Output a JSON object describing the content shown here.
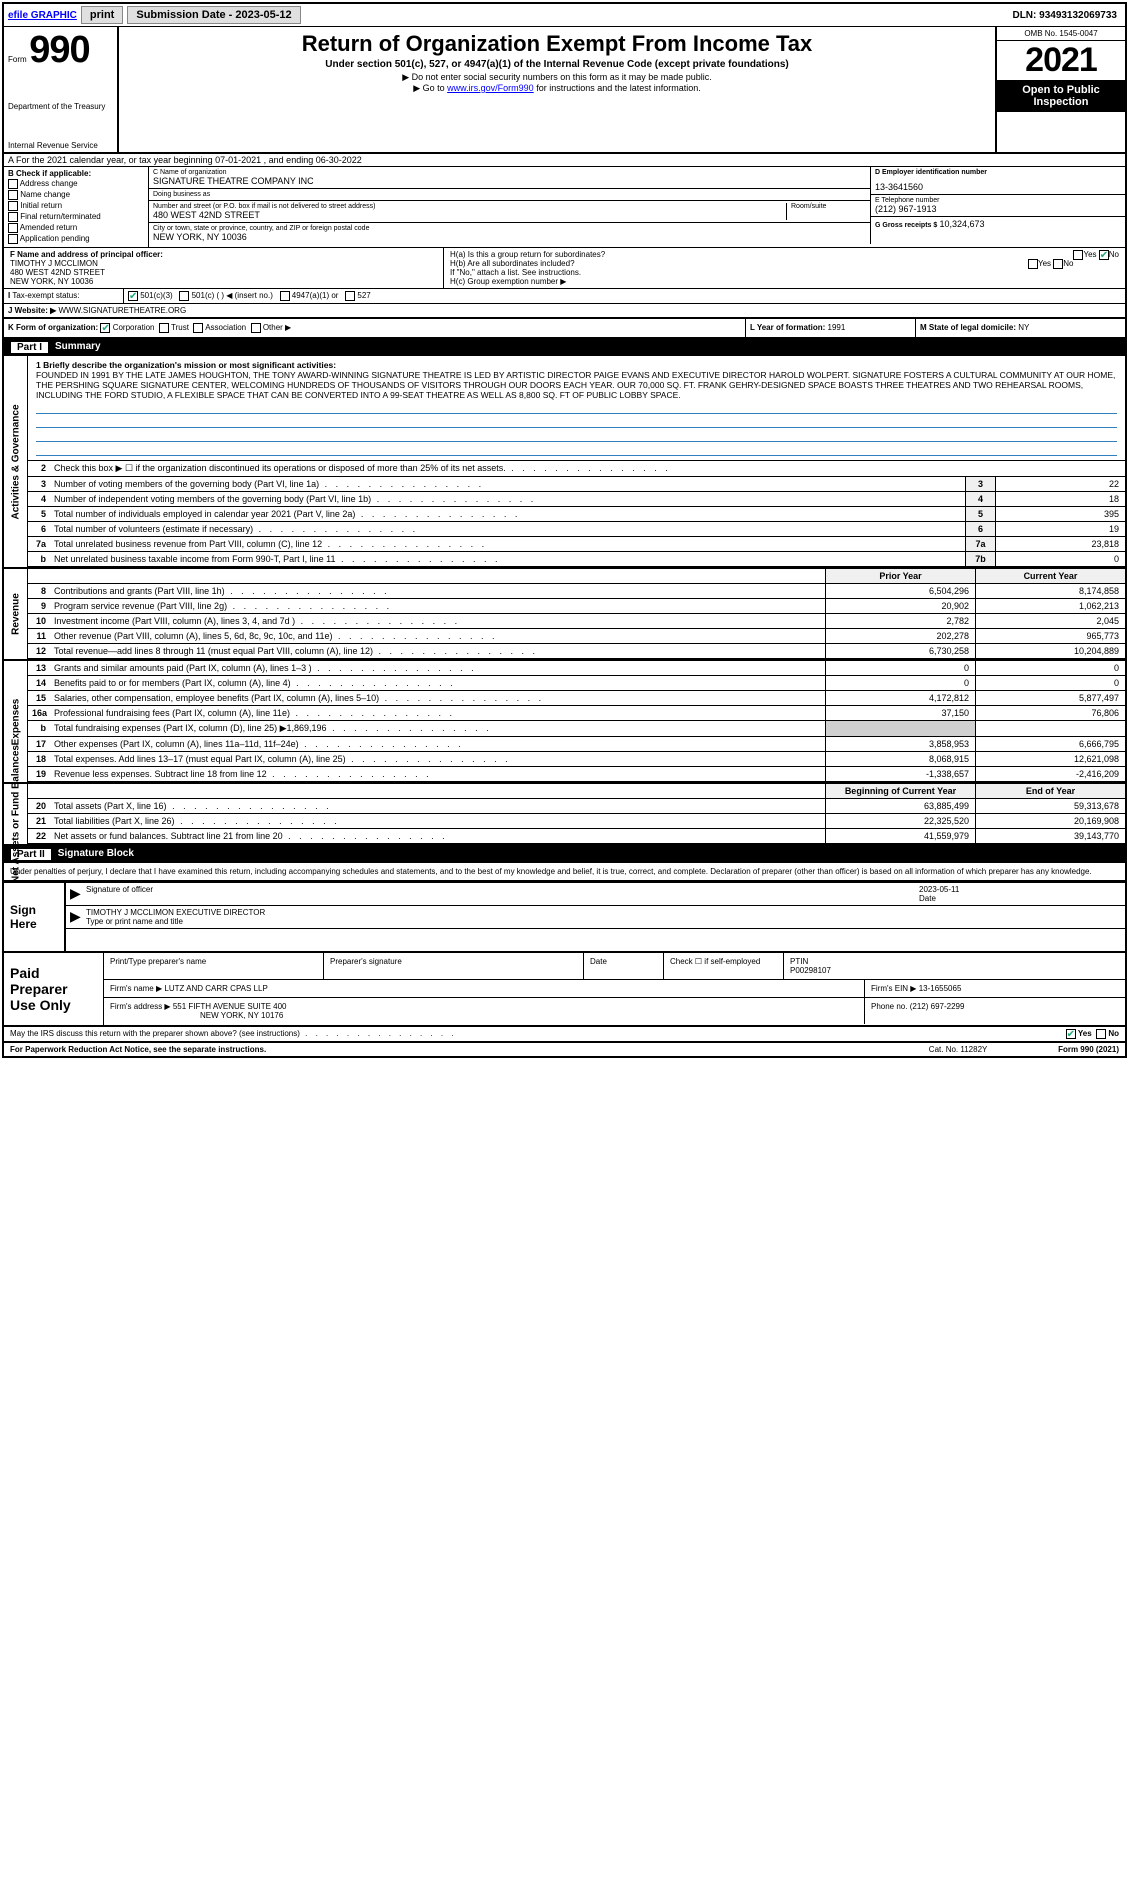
{
  "topbar": {
    "efile": "efile GRAPHIC",
    "print": "print",
    "subdate_lbl": "Submission Date - 2023-05-12",
    "dln": "DLN: 93493132069733"
  },
  "header": {
    "form_word": "Form",
    "form_num": "990",
    "dept": "Department of the Treasury",
    "irs": "Internal Revenue Service",
    "title": "Return of Organization Exempt From Income Tax",
    "sub": "Under section 501(c), 527, or 4947(a)(1) of the Internal Revenue Code (except private foundations)",
    "note1": "▶ Do not enter social security numbers on this form as it may be made public.",
    "note2_pre": "▶ Go to ",
    "note2_link": "www.irs.gov/Form990",
    "note2_post": " for instructions and the latest information.",
    "omb": "OMB No. 1545-0047",
    "year": "2021",
    "open": "Open to Public Inspection"
  },
  "a": {
    "text": "A For the 2021 calendar year, or tax year beginning 07-01-2021  , and ending 06-30-2022"
  },
  "b": {
    "lbl": "B Check if applicable:",
    "opts": [
      "Address change",
      "Name change",
      "Initial return",
      "Final return/terminated",
      "Amended return",
      "Application pending"
    ]
  },
  "c": {
    "lbl": "C Name of organization",
    "name": "SIGNATURE THEATRE COMPANY INC",
    "dba_lbl": "Doing business as",
    "dba": "",
    "addr_lbl": "Number and street (or P.O. box if mail is not delivered to street address)",
    "room_lbl": "Room/suite",
    "addr": "480 WEST 42ND STREET",
    "city_lbl": "City or town, state or province, country, and ZIP or foreign postal code",
    "city": "NEW YORK, NY  10036"
  },
  "d": {
    "lbl": "D Employer identification number",
    "val": "13-3641560"
  },
  "e": {
    "lbl": "E Telephone number",
    "val": "(212) 967-1913"
  },
  "g": {
    "lbl": "G Gross receipts $",
    "val": "10,324,673"
  },
  "f": {
    "lbl": "F  Name and address of principal officer:",
    "name": "TIMOTHY J MCCLIMON",
    "addr1": "480 WEST 42ND STREET",
    "addr2": "NEW YORK, NY  10036"
  },
  "h": {
    "a_lbl": "H(a)  Is this a group return for subordinates?",
    "a_no": "No",
    "b_lbl": "H(b)  Are all subordinates included?",
    "b_note": "If \"No,\" attach a list. See instructions.",
    "c_lbl": "H(c)  Group exemption number ▶"
  },
  "i": {
    "lbl": "Tax-exempt status:",
    "opts": [
      "501(c)(3)",
      "501(c) (  ) ◀ (insert no.)",
      "4947(a)(1) or",
      "527"
    ]
  },
  "j": {
    "lbl": "J   Website: ▶",
    "val": "WWW.SIGNATURETHEATRE.ORG"
  },
  "k": {
    "lbl": "K Form of organization:",
    "opts": [
      "Corporation",
      "Trust",
      "Association",
      "Other ▶"
    ],
    "l_lbl": "L Year of formation:",
    "l_val": "1991",
    "m_lbl": "M State of legal domicile:",
    "m_val": "NY"
  },
  "part1": {
    "num": "Part I",
    "title": "Summary"
  },
  "vtabs": {
    "act": "Activities & Governance",
    "rev": "Revenue",
    "exp": "Expenses",
    "net": "Net Assets or Fund Balances"
  },
  "mission": {
    "lbl": "1   Briefly describe the organization's mission or most significant activities:",
    "text": "FOUNDED IN 1991 BY THE LATE JAMES HOUGHTON, THE TONY AWARD-WINNING SIGNATURE THEATRE IS LED BY ARTISTIC DIRECTOR PAIGE EVANS AND EXECUTIVE DIRECTOR HAROLD WOLPERT. SIGNATURE FOSTERS A CULTURAL COMMUNITY AT OUR HOME, THE PERSHING SQUARE SIGNATURE CENTER, WELCOMING HUNDREDS OF THOUSANDS OF VISITORS THROUGH OUR DOORS EACH YEAR. OUR 70,000 SQ. FT. FRANK GEHRY-DESIGNED SPACE BOASTS THREE THEATRES AND TWO REHEARSAL ROOMS, INCLUDING THE FORD STUDIO, A FLEXIBLE SPACE THAT CAN BE CONVERTED INTO A 99-SEAT THEATRE AS WELL AS 8,800 SQ. FT OF PUBLIC LOBBY SPACE."
  },
  "gov_rows": [
    {
      "n": "2",
      "t": "Check this box ▶ ☐ if the organization discontinued its operations or disposed of more than 25% of its net assets.",
      "box": "",
      "v": ""
    },
    {
      "n": "3",
      "t": "Number of voting members of the governing body (Part VI, line 1a)",
      "box": "3",
      "v": "22"
    },
    {
      "n": "4",
      "t": "Number of independent voting members of the governing body (Part VI, line 1b)",
      "box": "4",
      "v": "18"
    },
    {
      "n": "5",
      "t": "Total number of individuals employed in calendar year 2021 (Part V, line 2a)",
      "box": "5",
      "v": "395"
    },
    {
      "n": "6",
      "t": "Total number of volunteers (estimate if necessary)",
      "box": "6",
      "v": "19"
    },
    {
      "n": "7a",
      "t": "Total unrelated business revenue from Part VIII, column (C), line 12",
      "box": "7a",
      "v": "23,818"
    },
    {
      "n": "b",
      "t": "Net unrelated business taxable income from Form 990-T, Part I, line 11",
      "box": "7b",
      "v": "0"
    }
  ],
  "yr_hdr": {
    "prior": "Prior Year",
    "curr": "Current Year"
  },
  "rev_rows": [
    {
      "n": "8",
      "t": "Contributions and grants (Part VIII, line 1h)",
      "p": "6,504,296",
      "c": "8,174,858"
    },
    {
      "n": "9",
      "t": "Program service revenue (Part VIII, line 2g)",
      "p": "20,902",
      "c": "1,062,213"
    },
    {
      "n": "10",
      "t": "Investment income (Part VIII, column (A), lines 3, 4, and 7d )",
      "p": "2,782",
      "c": "2,045"
    },
    {
      "n": "11",
      "t": "Other revenue (Part VIII, column (A), lines 5, 6d, 8c, 9c, 10c, and 11e)",
      "p": "202,278",
      "c": "965,773"
    },
    {
      "n": "12",
      "t": "Total revenue—add lines 8 through 11 (must equal Part VIII, column (A), line 12)",
      "p": "6,730,258",
      "c": "10,204,889"
    }
  ],
  "exp_rows": [
    {
      "n": "13",
      "t": "Grants and similar amounts paid (Part IX, column (A), lines 1–3 )",
      "p": "0",
      "c": "0"
    },
    {
      "n": "14",
      "t": "Benefits paid to or for members (Part IX, column (A), line 4)",
      "p": "0",
      "c": "0"
    },
    {
      "n": "15",
      "t": "Salaries, other compensation, employee benefits (Part IX, column (A), lines 5–10)",
      "p": "4,172,812",
      "c": "5,877,497"
    },
    {
      "n": "16a",
      "t": "Professional fundraising fees (Part IX, column (A), line 11e)",
      "p": "37,150",
      "c": "76,806"
    },
    {
      "n": "b",
      "t": "Total fundraising expenses (Part IX, column (D), line 25) ▶1,869,196",
      "p": "",
      "c": "",
      "shade": true
    },
    {
      "n": "17",
      "t": "Other expenses (Part IX, column (A), lines 11a–11d, 11f–24e)",
      "p": "3,858,953",
      "c": "6,666,795"
    },
    {
      "n": "18",
      "t": "Total expenses. Add lines 13–17 (must equal Part IX, column (A), line 25)",
      "p": "8,068,915",
      "c": "12,621,098"
    },
    {
      "n": "19",
      "t": "Revenue less expenses. Subtract line 18 from line 12",
      "p": "-1,338,657",
      "c": "-2,416,209"
    }
  ],
  "net_hdr": {
    "beg": "Beginning of Current Year",
    "end": "End of Year"
  },
  "net_rows": [
    {
      "n": "20",
      "t": "Total assets (Part X, line 16)",
      "p": "63,885,499",
      "c": "59,313,678"
    },
    {
      "n": "21",
      "t": "Total liabilities (Part X, line 26)",
      "p": "22,325,520",
      "c": "20,169,908"
    },
    {
      "n": "22",
      "t": "Net assets or fund balances. Subtract line 21 from line 20",
      "p": "41,559,979",
      "c": "39,143,770"
    }
  ],
  "part2": {
    "num": "Part II",
    "title": "Signature Block"
  },
  "sig": {
    "decl": "Under penalties of perjury, I declare that I have examined this return, including accompanying schedules and statements, and to the best of my knowledge and belief, it is true, correct, and complete. Declaration of preparer (other than officer) is based on all information of which preparer has any knowledge.",
    "here": "Sign Here",
    "sig_lbl": "Signature of officer",
    "date_lbl": "Date",
    "date": "2023-05-11",
    "name": "TIMOTHY J MCCLIMON  EXECUTIVE DIRECTOR",
    "name_lbl": "Type or print name and title"
  },
  "paid": {
    "title": "Paid Preparer Use Only",
    "h1": "Print/Type preparer's name",
    "h2": "Preparer's signature",
    "h3": "Date",
    "h4": "Check ☐ if self-employed",
    "h5": "PTIN",
    "ptin": "P00298107",
    "firm_lbl": "Firm's name    ▶",
    "firm": "LUTZ AND CARR CPAS LLP",
    "ein_lbl": "Firm's EIN ▶",
    "ein": "13-1655065",
    "addr_lbl": "Firm's address ▶",
    "addr1": "551 FIFTH AVENUE SUITE 400",
    "addr2": "NEW YORK, NY  10176",
    "phone_lbl": "Phone no.",
    "phone": "(212) 697-2299"
  },
  "foot": {
    "discuss": "May the IRS discuss this return with the preparer shown above? (see instructions)",
    "yes": "Yes",
    "no": "No",
    "pra": "For Paperwork Reduction Act Notice, see the separate instructions.",
    "cat": "Cat. No. 11282Y",
    "form": "Form 990 (2021)"
  }
}
